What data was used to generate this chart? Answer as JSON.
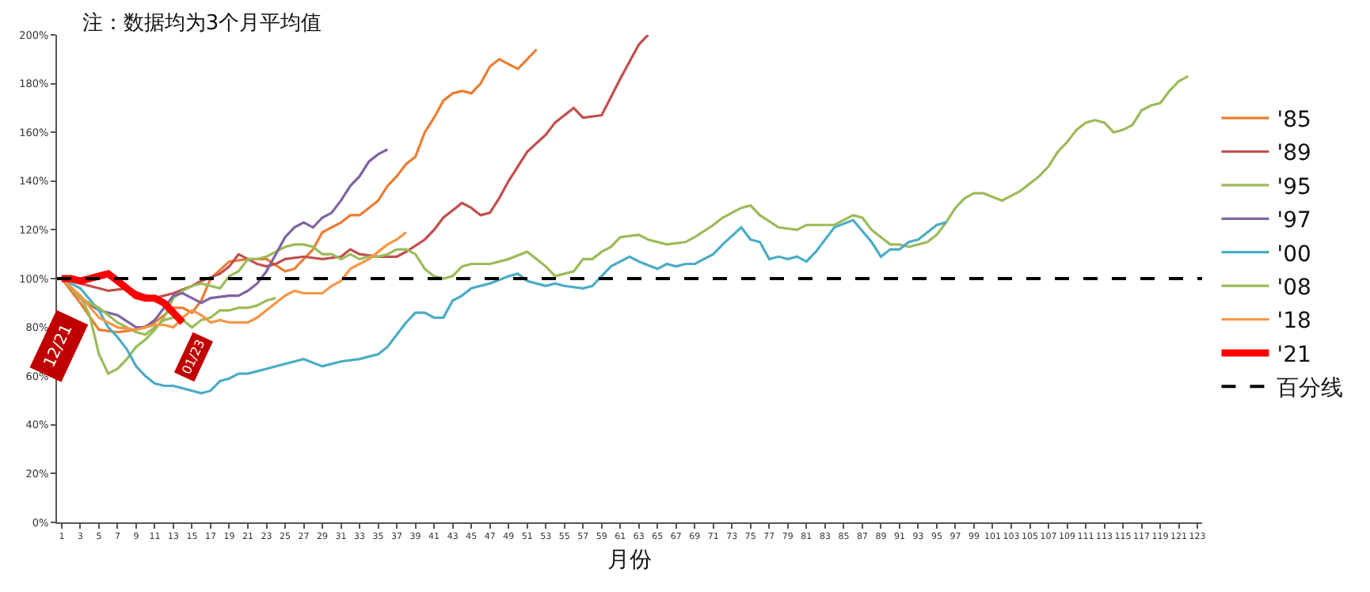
{
  "chart_data": {
    "type": "line",
    "title": "注：数据均为3个月平均值",
    "xlabel": "月份",
    "xlim": [
      0.5,
      123.5
    ],
    "xticks": [
      1,
      3,
      5,
      7,
      9,
      11,
      13,
      15,
      17,
      19,
      21,
      23,
      25,
      27,
      29,
      31,
      33,
      35,
      37,
      39,
      41,
      43,
      45,
      47,
      49,
      51,
      53,
      55,
      57,
      59,
      61,
      63,
      65,
      67,
      69,
      71,
      73,
      75,
      77,
      79,
      81,
      83,
      85,
      87,
      89,
      91,
      93,
      95,
      97,
      99,
      101,
      103,
      105,
      107,
      109,
      111,
      113,
      115,
      117,
      119,
      121,
      123
    ],
    "ylim": [
      0,
      200
    ],
    "yticks": [
      {
        "value": 0,
        "label": "0%"
      },
      {
        "value": 20,
        "label": "20%"
      },
      {
        "value": 40,
        "label": "40%"
      },
      {
        "value": 60,
        "label": "60%"
      },
      {
        "value": 80,
        "label": "80%"
      },
      {
        "value": 100,
        "label": "100%"
      },
      {
        "value": 120,
        "label": "120%"
      },
      {
        "value": 140,
        "label": "140%"
      },
      {
        "value": 160,
        "label": "160%"
      },
      {
        "value": 180,
        "label": "180%"
      },
      {
        "value": 200,
        "label": "200%"
      }
    ],
    "legend": "right",
    "marker": "none",
    "series": [
      {
        "name": "'85",
        "color": "#ed7d31",
        "x": [
          1,
          3,
          5,
          7,
          9,
          11,
          13,
          14,
          15,
          16,
          17,
          19,
          21,
          23,
          25,
          26,
          28,
          29,
          31,
          32,
          33,
          35,
          36,
          37,
          38,
          39,
          40,
          41,
          42,
          43,
          44,
          45,
          46,
          47,
          48,
          50,
          51,
          52
        ],
        "values": [
          100,
          90,
          79,
          78,
          79,
          82,
          88,
          88,
          86,
          91,
          100,
          107,
          108,
          108,
          103,
          104,
          112,
          119,
          123,
          126,
          126,
          132,
          138,
          142,
          147,
          150,
          160,
          166,
          173,
          176,
          177,
          176,
          180,
          187,
          190,
          186,
          190,
          194
        ]
      },
      {
        "name": "'89",
        "color": "#c0504d",
        "x": [
          1,
          3,
          5,
          6,
          8,
          10,
          11,
          13,
          15,
          16,
          18,
          19,
          20,
          21,
          22,
          23,
          24,
          25,
          27,
          29,
          31,
          32,
          33,
          35,
          37,
          38,
          40,
          41,
          42,
          43,
          44,
          45,
          46,
          47,
          48,
          49,
          51,
          53,
          54,
          56,
          57,
          59,
          61,
          63,
          64
        ],
        "values": [
          100,
          98,
          96,
          95,
          96,
          93,
          92,
          94,
          97,
          99,
          102,
          105,
          110,
          108,
          106,
          105,
          106,
          108,
          109,
          108,
          109,
          112,
          110,
          109,
          109,
          111,
          116,
          120,
          125,
          128,
          131,
          129,
          126,
          127,
          133,
          140,
          152,
          159,
          164,
          170,
          166,
          167,
          182,
          196,
          200
        ]
      },
      {
        "name": "'95",
        "color": "#9bbb59",
        "x": [
          1,
          3,
          4,
          5,
          6,
          7,
          8,
          9,
          10,
          11,
          12,
          13,
          14,
          15,
          16,
          17,
          18,
          19,
          20,
          21,
          22,
          23,
          24,
          25,
          26,
          27,
          28,
          29,
          30,
          31,
          32,
          33,
          34,
          35,
          36,
          37,
          38,
          39,
          40,
          41,
          42,
          43,
          44,
          45,
          47,
          49,
          51,
          52,
          53,
          54,
          56,
          57,
          58,
          59,
          60,
          61,
          63,
          64,
          66,
          68,
          69,
          71,
          72,
          74,
          75,
          76,
          78,
          80,
          81,
          83,
          84,
          86,
          87,
          88,
          89,
          90,
          91,
          92,
          94,
          95,
          96,
          97,
          98,
          99,
          100,
          102,
          104,
          106,
          107,
          108,
          109,
          110,
          111,
          112,
          113,
          114,
          115,
          116,
          117,
          118,
          119,
          120,
          121,
          122
        ],
        "values": [
          100,
          93,
          85,
          69,
          61,
          63,
          67,
          72,
          75,
          79,
          84,
          92,
          95,
          97,
          98,
          97,
          96,
          101,
          103,
          108,
          108,
          109,
          111,
          113,
          114,
          114,
          113,
          110,
          110,
          108,
          110,
          108,
          109,
          109,
          110,
          112,
          112,
          110,
          104,
          101,
          100,
          101,
          105,
          106,
          106,
          108,
          111,
          108,
          105,
          101,
          103,
          108,
          108,
          111,
          113,
          117,
          118,
          116,
          114,
          115,
          117,
          122,
          125,
          129,
          130,
          126,
          121,
          120,
          122,
          122,
          122,
          126,
          125,
          120,
          117,
          114,
          114,
          113,
          115,
          118,
          123,
          129,
          133,
          135,
          135,
          132,
          136,
          142,
          146,
          152,
          156,
          161,
          164,
          165,
          164,
          160,
          161,
          163,
          169,
          171,
          172,
          177,
          181,
          183
        ]
      },
      {
        "name": "'97",
        "color": "#8064a2",
        "x": [
          1,
          3,
          5,
          7,
          9,
          10,
          11,
          12,
          13,
          14,
          15,
          16,
          17,
          19,
          20,
          21,
          22,
          23,
          24,
          25,
          26,
          27,
          28,
          29,
          30,
          31,
          32,
          33,
          34,
          35,
          36
        ],
        "values": [
          100,
          92,
          87,
          85,
          80,
          80,
          83,
          88,
          93,
          94,
          92,
          90,
          92,
          93,
          93,
          95,
          98,
          103,
          110,
          117,
          121,
          123,
          121,
          125,
          127,
          132,
          138,
          142,
          148,
          151,
          153
        ]
      },
      {
        "name": "'00",
        "color": "#4bacc6",
        "x": [
          1,
          3,
          5,
          6,
          7,
          8,
          9,
          10,
          11,
          12,
          13,
          14,
          15,
          16,
          17,
          18,
          19,
          20,
          21,
          23,
          25,
          27,
          29,
          31,
          33,
          35,
          36,
          37,
          38,
          39,
          40,
          41,
          42,
          43,
          44,
          45,
          47,
          49,
          50,
          51,
          52,
          53,
          54,
          55,
          57,
          58,
          60,
          62,
          63,
          65,
          66,
          67,
          68,
          69,
          71,
          72,
          74,
          75,
          76,
          77,
          78,
          79,
          80,
          81,
          82,
          84,
          86,
          88,
          89,
          90,
          91,
          92,
          93,
          94,
          95,
          96
        ],
        "values": [
          100,
          96,
          87,
          80,
          76,
          71,
          64,
          60,
          57,
          56,
          56,
          55,
          54,
          53,
          54,
          58,
          59,
          61,
          61,
          63,
          65,
          67,
          64,
          66,
          67,
          69,
          72,
          77,
          82,
          86,
          86,
          84,
          84,
          91,
          93,
          96,
          98,
          101,
          102,
          99,
          98,
          97,
          98,
          97,
          96,
          97,
          105,
          109,
          107,
          104,
          106,
          105,
          106,
          106,
          110,
          114,
          121,
          116,
          115,
          108,
          109,
          108,
          109,
          107,
          111,
          121,
          124,
          115,
          109,
          112,
          112,
          115,
          116,
          119,
          122,
          123
        ]
      },
      {
        "name": "'08",
        "color": "#9bbb59",
        "x": [
          1,
          3,
          5,
          7,
          9,
          10,
          11,
          12,
          13,
          14,
          15,
          16,
          17,
          18,
          19,
          20,
          21,
          22,
          23,
          24
        ],
        "values": [
          100,
          92,
          88,
          82,
          78,
          77,
          80,
          83,
          84,
          83,
          80,
          83,
          84,
          87,
          87,
          88,
          88,
          89,
          91,
          92
        ]
      },
      {
        "name": "'18",
        "color": "#f79646",
        "x": [
          1,
          3,
          5,
          7,
          9,
          10,
          11,
          12,
          13,
          14,
          15,
          16,
          17,
          18,
          19,
          20,
          21,
          22,
          23,
          24,
          25,
          26,
          27,
          28,
          29,
          30,
          31,
          32,
          33,
          34,
          35,
          36,
          37,
          38
        ],
        "values": [
          100,
          93,
          84,
          80,
          79,
          80,
          81,
          81,
          80,
          84,
          87,
          85,
          82,
          83,
          82,
          82,
          82,
          84,
          87,
          90,
          93,
          95,
          94,
          94,
          94,
          97,
          99,
          104,
          106,
          108,
          111,
          114,
          116,
          119
        ]
      },
      {
        "name": "'21",
        "color": "#ff0000",
        "x": [
          1,
          2,
          3,
          4,
          5,
          6,
          7,
          8,
          9,
          10,
          11,
          12,
          13,
          14
        ],
        "values": [
          100,
          100,
          99,
          100,
          101,
          102,
          99,
          96,
          93,
          92,
          92,
          90,
          86,
          82
        ]
      }
    ],
    "ref_lines": [
      {
        "axis": "y",
        "value": 100,
        "label": "百分线",
        "color": "#000000",
        "line_style": "dashed"
      }
    ],
    "annotations": [
      {
        "text": "12/21",
        "x": 1,
        "y": 100
      },
      {
        "text": "01/23",
        "x": 14,
        "y": 82
      }
    ]
  }
}
